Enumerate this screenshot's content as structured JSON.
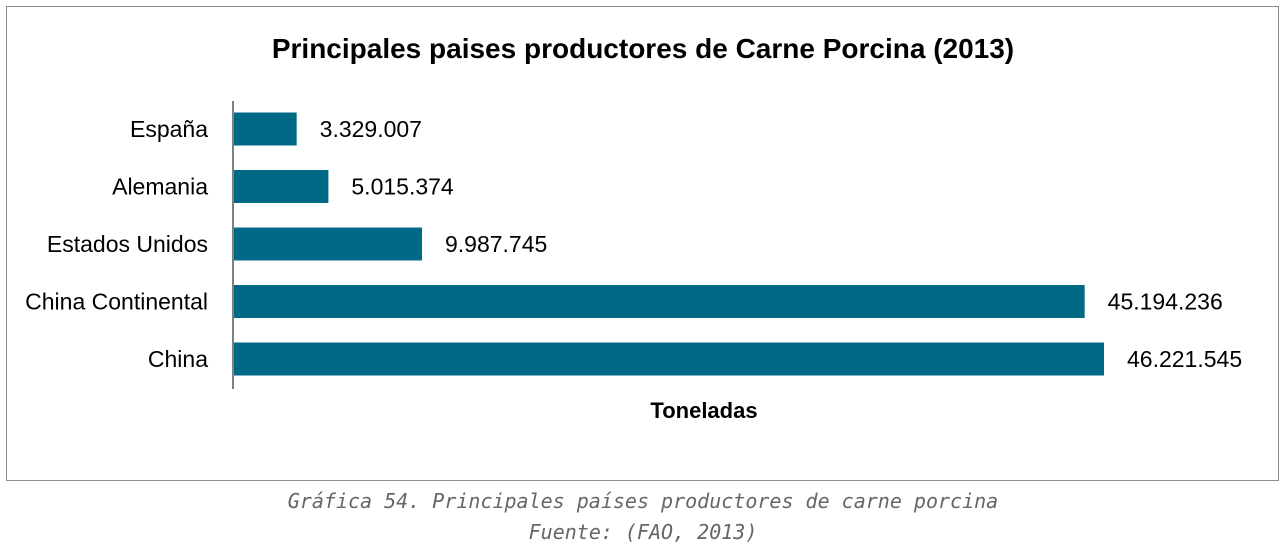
{
  "chart_data": {
    "type": "bar",
    "orientation": "horizontal",
    "title": "Principales paises productores de Carne Porcina (2013)",
    "xlabel": "Toneladas",
    "ylabel": "",
    "categories": [
      "España",
      "Alemania",
      "Estados Unidos",
      "China Continental",
      "China"
    ],
    "values": [
      3329007,
      5015374,
      9987745,
      45194236,
      46221545
    ],
    "value_labels": [
      "3.329.007",
      "5.015.374",
      "9.987.745",
      "45.194.236",
      "46.221.545"
    ],
    "xlim": [
      0,
      48000000
    ],
    "grid": false,
    "bar_color": "#006a86"
  },
  "caption": {
    "line1": "Gráfica 54. Principales países productores de carne porcina",
    "line2": "Fuente: (FAO, 2013)"
  }
}
